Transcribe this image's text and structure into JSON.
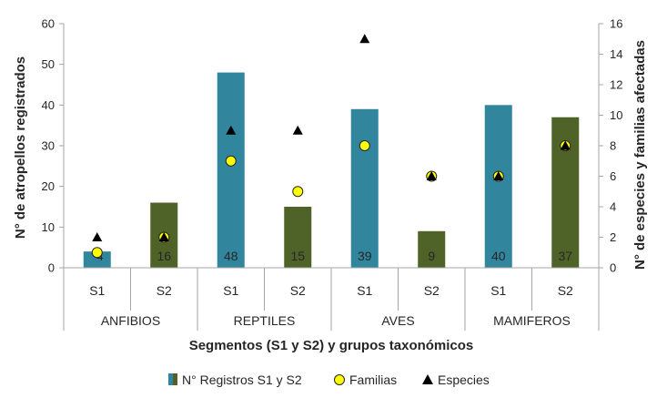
{
  "chart_data": {
    "type": "bar",
    "xlabel": "Segmentos (S1 y S2) y grupos taxonómicos",
    "ylabel": "N° de atropellos registrados",
    "y2label": "N° de especies y familias afectadas",
    "ylim": [
      0,
      60
    ],
    "y2lim": [
      0,
      16
    ],
    "yticks": [
      "0",
      "10",
      "20",
      "30",
      "40",
      "50",
      "60"
    ],
    "y2ticks": [
      "0",
      "2",
      "4",
      "6",
      "8",
      "10",
      "12",
      "14",
      "16"
    ],
    "groups": [
      "ANFIBIOS",
      "REPTILES",
      "AVES",
      "MAMIFEROS"
    ],
    "categories": [
      "S1",
      "S2",
      "S1",
      "S2",
      "S1",
      "S2",
      "S1",
      "S2"
    ],
    "bar_labels": [
      "4",
      "16",
      "48",
      "15",
      "39",
      "9",
      "40",
      "37"
    ],
    "series": [
      {
        "name": "N° Registros S1 y S2",
        "kind": "bar",
        "axis": "left",
        "values": [
          4,
          16,
          48,
          15,
          39,
          9,
          40,
          37
        ]
      },
      {
        "name": "Familias",
        "kind": "marker-circle",
        "axis": "right",
        "values": [
          1,
          2,
          7,
          5,
          8,
          6,
          6,
          8
        ]
      },
      {
        "name": "Especies",
        "kind": "marker-triangle",
        "axis": "right",
        "values": [
          2,
          2,
          9,
          9,
          15,
          6,
          6,
          8
        ]
      }
    ],
    "legend": [
      "N° Registros S1 y S2",
      "Familias",
      "Especies"
    ],
    "legend_position": "bottom",
    "colors": {
      "s1": "#31859C",
      "s2": "#4F6228",
      "familias": "#FFFF00",
      "especies": "#000000",
      "axis": "#A6A6A6"
    }
  }
}
